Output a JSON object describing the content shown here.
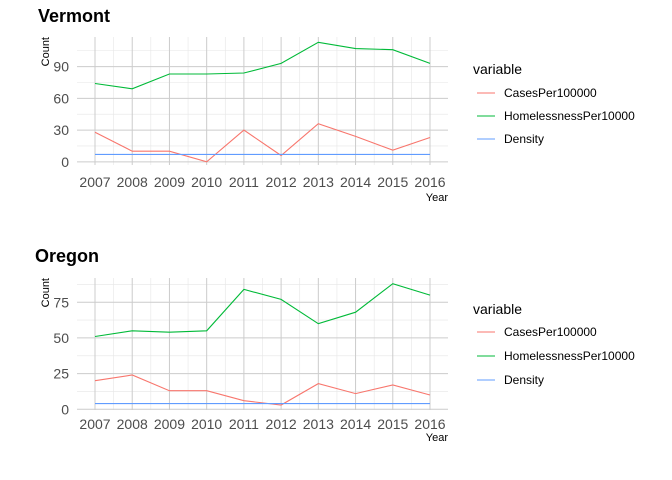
{
  "chart_data": [
    {
      "type": "line",
      "title": "Vermont",
      "xlabel": "Year",
      "ylabel": "Count",
      "categories": [
        "2007",
        "2008",
        "2009",
        "2010",
        "2011",
        "2012",
        "2013",
        "2014",
        "2015",
        "2016"
      ],
      "yticks": [
        0,
        30,
        60,
        90
      ],
      "ylim": [
        -3,
        118
      ],
      "legend_title": "variable",
      "legend_position": "right",
      "grid": true,
      "series": [
        {
          "name": "CasesPer100000",
          "color": "#F8766D",
          "values": [
            28,
            10,
            10,
            0,
            30,
            6,
            36,
            24,
            11,
            23
          ]
        },
        {
          "name": "HomelessnessPer10000",
          "color": "#00BA38",
          "values": [
            74,
            69,
            83,
            83,
            84,
            93,
            113,
            107,
            106,
            93
          ]
        },
        {
          "name": "Density",
          "color": "#619CFF",
          "values": [
            7,
            7,
            7,
            7,
            7,
            7,
            7,
            7,
            7,
            7
          ]
        }
      ]
    },
    {
      "type": "line",
      "title": "Oregon",
      "xlabel": "Year",
      "ylabel": "Count",
      "categories": [
        "2007",
        "2008",
        "2009",
        "2010",
        "2011",
        "2012",
        "2013",
        "2014",
        "2015",
        "2016"
      ],
      "yticks": [
        0,
        25,
        50,
        75
      ],
      "ylim": [
        -0.5,
        92
      ],
      "legend_title": "variable",
      "legend_position": "right",
      "grid": true,
      "series": [
        {
          "name": "CasesPer100000",
          "color": "#F8766D",
          "values": [
            20,
            24,
            13,
            13,
            6,
            3,
            18,
            11,
            17,
            10
          ]
        },
        {
          "name": "HomelessnessPer10000",
          "color": "#00BA38",
          "values": [
            51,
            55,
            54,
            55,
            84,
            77,
            60,
            68,
            88,
            80
          ]
        },
        {
          "name": "Density",
          "color": "#619CFF",
          "values": [
            4,
            4,
            4,
            4,
            4,
            4,
            4,
            4,
            4,
            4
          ]
        }
      ]
    }
  ]
}
